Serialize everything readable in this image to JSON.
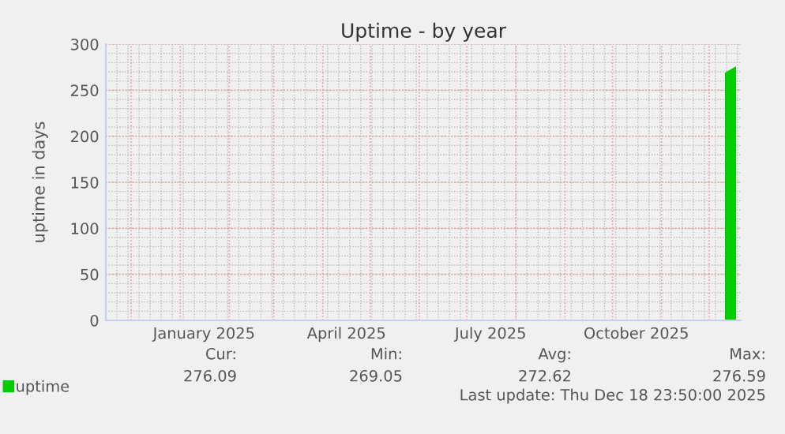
{
  "chart_data": {
    "type": "area",
    "title": "Uptime - by year",
    "ylabel": "uptime in days",
    "x": [
      "2025-12-11",
      "2025-12-12",
      "2025-12-13",
      "2025-12-14",
      "2025-12-15",
      "2025-12-16",
      "2025-12-17",
      "2025-12-18"
    ],
    "series": [
      {
        "name": "uptime",
        "color": "#00cc00",
        "values": [
          269,
          270,
          271,
          272,
          273,
          274,
          275,
          276
        ]
      }
    ],
    "xlim": [
      "2024-11-15",
      "2025-12-21"
    ],
    "xticks": [
      {
        "value": "2024-12-01",
        "label": null
      },
      {
        "value": "2025-01-01",
        "label": null
      },
      {
        "value": "2025-01-16",
        "label": "January 2025"
      },
      {
        "value": "2025-02-01",
        "label": null
      },
      {
        "value": "2025-03-01",
        "label": null
      },
      {
        "value": "2025-04-01",
        "label": null
      },
      {
        "value": "2025-04-16",
        "label": "April 2025"
      },
      {
        "value": "2025-05-01",
        "label": null
      },
      {
        "value": "2025-06-01",
        "label": null
      },
      {
        "value": "2025-07-01",
        "label": null
      },
      {
        "value": "2025-07-16",
        "label": "July 2025"
      },
      {
        "value": "2025-08-01",
        "label": null
      },
      {
        "value": "2025-09-01",
        "label": null
      },
      {
        "value": "2025-10-01",
        "label": null
      },
      {
        "value": "2025-10-16",
        "label": "October 2025"
      },
      {
        "value": "2025-11-01",
        "label": null
      },
      {
        "value": "2025-12-01",
        "label": null
      }
    ],
    "ylim": [
      0,
      300
    ],
    "yticks": [
      0,
      50,
      100,
      150,
      200,
      250,
      300
    ],
    "grid": true,
    "legend": "bottom left",
    "annotations": [
      "Cur:",
      "276.09",
      "Min:",
      "269.05",
      "Avg:",
      "272.62",
      "Max:",
      "276.59",
      "Last update: Thu Dec 18 23:50:00 2025"
    ]
  }
}
